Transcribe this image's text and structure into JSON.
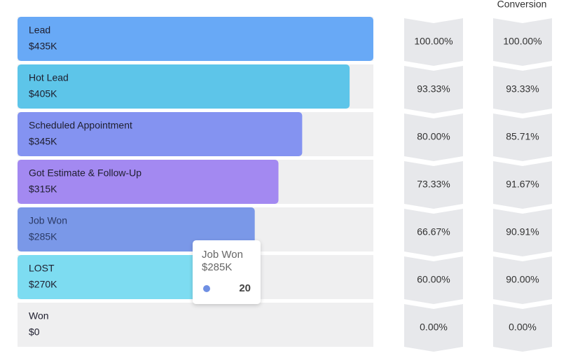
{
  "chart_data": {
    "type": "funnel",
    "categories": [
      "Lead",
      "Hot Lead",
      "Scheduled Appointment",
      "Got Estimate & Follow-Up",
      "Job Won",
      "LOST",
      "Won"
    ],
    "amount_labels": [
      "$435K",
      "$405K",
      "$345K",
      "$315K",
      "$285K",
      "$270K",
      "$0"
    ],
    "values": [
      100,
      93.33,
      80,
      73.33,
      66.67,
      60,
      0
    ],
    "value_labels": [
      "100.00%",
      "93.33%",
      "80.00%",
      "73.33%",
      "66.67%",
      "60.00%",
      "0.00%"
    ],
    "xlim": [
      0,
      100
    ],
    "colors": [
      "#68a9f6",
      "#5dc5e9",
      "#8493f1",
      "#a389f1",
      "#7a98e8",
      "#7ddcf1",
      "#cccccc"
    ],
    "conversion": {
      "title": "Conversion",
      "labels": [
        "100.00%",
        "93.33%",
        "85.71%",
        "91.67%",
        "90.91%",
        "90.00%",
        "0.00%"
      ]
    },
    "tooltip": {
      "title": "Job Won",
      "subtitle": "$285K",
      "value": 20,
      "color": "#6f8fe3"
    }
  }
}
